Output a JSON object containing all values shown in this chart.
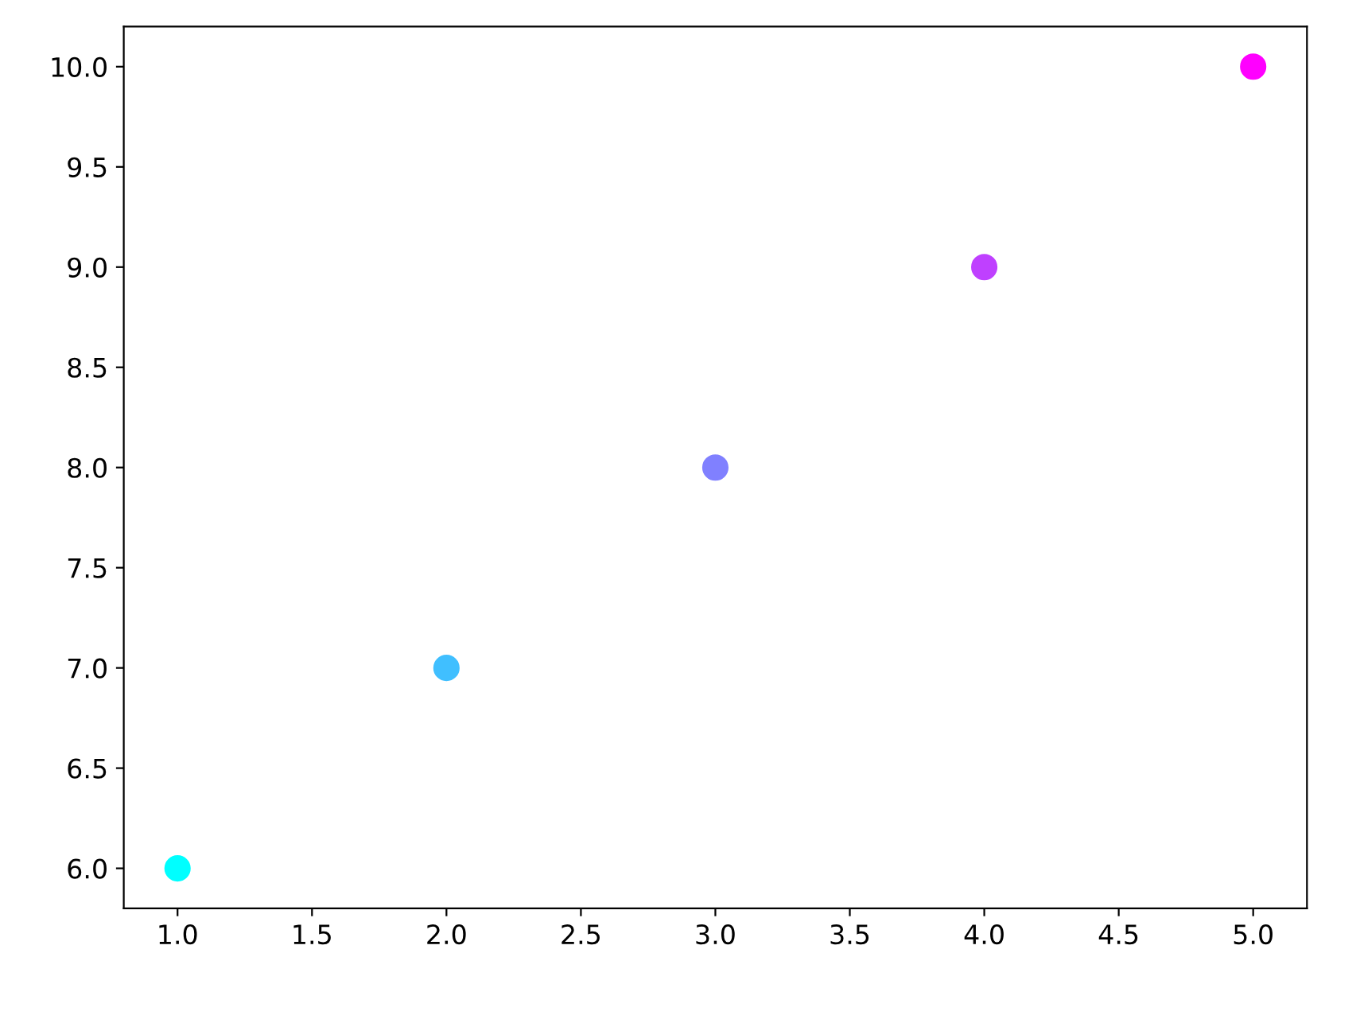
{
  "chart_data": {
    "type": "scatter",
    "x": [
      1,
      2,
      3,
      4,
      5
    ],
    "values": [
      6,
      7,
      8,
      9,
      10
    ],
    "colors": [
      "#00ffff",
      "#40bfff",
      "#8080ff",
      "#bf40ff",
      "#ff00ff"
    ],
    "xlim": [
      0.8,
      5.2
    ],
    "xticks": [
      {
        "value": 1,
        "label": "1.0"
      },
      {
        "value": 1.5,
        "label": "1.5"
      },
      {
        "value": 2,
        "label": "2.0"
      },
      {
        "value": 2.5,
        "label": "2.5"
      },
      {
        "value": 3,
        "label": "3.0"
      },
      {
        "value": 3.5,
        "label": "3.5"
      },
      {
        "value": 4,
        "label": "4.0"
      },
      {
        "value": 4.5,
        "label": "4.5"
      },
      {
        "value": 5,
        "label": "5.0"
      }
    ],
    "ylim": [
      5.8,
      10.2
    ],
    "yticks": [
      {
        "value": 6,
        "label": "6.0"
      },
      {
        "value": 6.5,
        "label": "6.5"
      },
      {
        "value": 7,
        "label": "7.0"
      },
      {
        "value": 7.5,
        "label": "7.5"
      },
      {
        "value": 8,
        "label": "8.0"
      },
      {
        "value": 8.5,
        "label": "8.5"
      },
      {
        "value": 9,
        "label": "9.0"
      },
      {
        "value": 9.5,
        "label": "9.5"
      },
      {
        "value": 10,
        "label": "10.0"
      }
    ],
    "marker": "circle",
    "grid": false,
    "legend": false
  }
}
